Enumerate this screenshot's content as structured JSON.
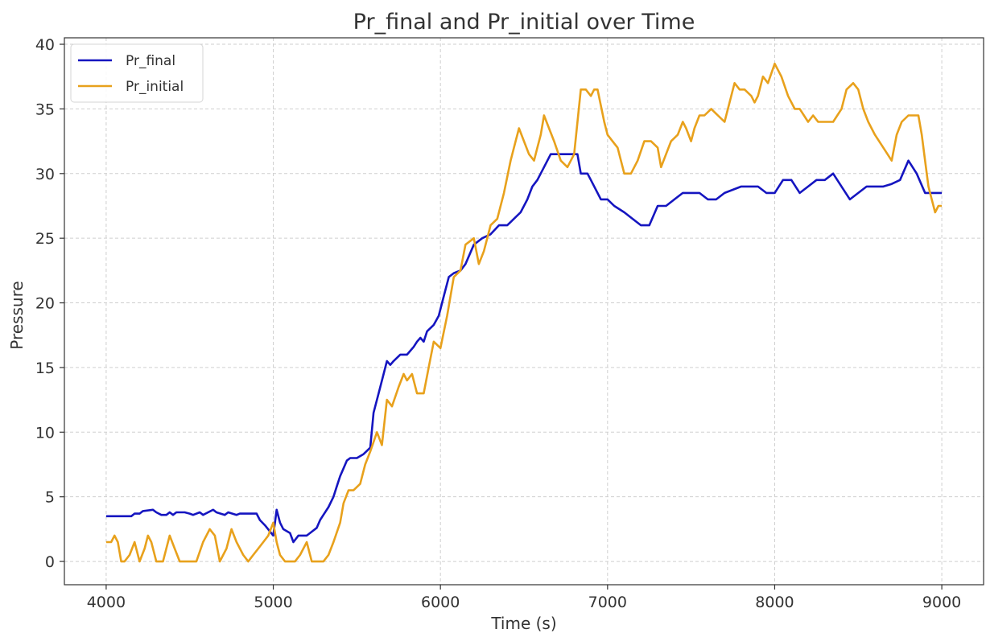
{
  "chart_data": {
    "type": "line",
    "title": "Pr_final and Pr_initial over Time",
    "xlabel": "Time (s)",
    "ylabel": "Pressure",
    "xlim": [
      3750,
      9250
    ],
    "ylim": [
      -1.8,
      40.5
    ],
    "xticks": [
      4000,
      5000,
      6000,
      7000,
      8000,
      9000
    ],
    "yticks": [
      0,
      5,
      10,
      15,
      20,
      25,
      30,
      35,
      40
    ],
    "grid": true,
    "legend_position": "top-left",
    "series": [
      {
        "name": "Pr_final",
        "color": "#1515c0",
        "x": [
          4000,
          4150,
          4170,
          4200,
          4220,
          4280,
          4300,
          4330,
          4360,
          4380,
          4400,
          4420,
          4470,
          4500,
          4520,
          4560,
          4580,
          4640,
          4660,
          4710,
          4730,
          4780,
          4800,
          4900,
          4920,
          4950,
          5000,
          5020,
          5040,
          5060,
          5100,
          5120,
          5150,
          5170,
          5200,
          5230,
          5260,
          5280,
          5300,
          5330,
          5360,
          5380,
          5400,
          5420,
          5440,
          5460,
          5500,
          5540,
          5580,
          5600,
          5630,
          5660,
          5680,
          5700,
          5720,
          5760,
          5800,
          5840,
          5860,
          5880,
          5900,
          5920,
          5960,
          5990,
          6020,
          6050,
          6080,
          6120,
          6150,
          6200,
          6250,
          6300,
          6350,
          6400,
          6440,
          6480,
          6520,
          6550,
          6580,
          6620,
          6660,
          6720,
          6760,
          6820,
          6840,
          6880,
          6900,
          6960,
          7000,
          7040,
          7100,
          7150,
          7200,
          7250,
          7300,
          7350,
          7400,
          7450,
          7500,
          7550,
          7600,
          7650,
          7700,
          7800,
          7850,
          7900,
          7950,
          8000,
          8050,
          8100,
          8150,
          8200,
          8250,
          8300,
          8350,
          8400,
          8450,
          8500,
          8550,
          8600,
          8650,
          8700,
          8750,
          8800,
          8850,
          8900,
          9000
        ],
        "values": [
          3.5,
          3.5,
          3.7,
          3.7,
          3.9,
          4.0,
          3.8,
          3.6,
          3.6,
          3.8,
          3.6,
          3.8,
          3.8,
          3.7,
          3.6,
          3.8,
          3.6,
          4.0,
          3.8,
          3.6,
          3.8,
          3.6,
          3.7,
          3.7,
          3.2,
          2.8,
          2.0,
          4.0,
          3.0,
          2.5,
          2.2,
          1.5,
          2.0,
          2.0,
          2.0,
          2.3,
          2.6,
          3.2,
          3.6,
          4.2,
          5.0,
          5.8,
          6.6,
          7.2,
          7.8,
          8.0,
          8.0,
          8.3,
          8.8,
          11.5,
          13.0,
          14.5,
          15.5,
          15.2,
          15.5,
          16.0,
          16.0,
          16.6,
          17.0,
          17.3,
          17.0,
          17.8,
          18.3,
          19.0,
          20.5,
          22.0,
          22.3,
          22.5,
          23.0,
          24.5,
          25.0,
          25.3,
          26.0,
          26.0,
          26.5,
          27.0,
          28.0,
          29.0,
          29.5,
          30.5,
          31.5,
          31.5,
          31.5,
          31.5,
          30.0,
          30.0,
          29.5,
          28.0,
          28.0,
          27.5,
          27.0,
          26.5,
          26.0,
          26.0,
          27.5,
          27.5,
          28.0,
          28.5,
          28.5,
          28.5,
          28.0,
          28.0,
          28.5,
          29.0,
          29.0,
          29.0,
          28.5,
          28.5,
          29.5,
          29.5,
          28.5,
          29.0,
          29.5,
          29.5,
          30.0,
          29.0,
          28.0,
          28.5,
          29.0,
          29.0,
          29.0,
          29.2,
          29.5,
          31.0,
          30.0,
          28.5,
          28.5
        ]
      },
      {
        "name": "Pr_initial",
        "color": "#e8a11c",
        "x": [
          4000,
          4030,
          4050,
          4070,
          4090,
          4110,
          4140,
          4170,
          4200,
          4230,
          4250,
          4270,
          4300,
          4340,
          4380,
          4410,
          4440,
          4470,
          4500,
          4540,
          4580,
          4620,
          4650,
          4680,
          4720,
          4750,
          4780,
          4820,
          4850,
          4880,
          4910,
          4940,
          4970,
          5000,
          5020,
          5040,
          5070,
          5100,
          5130,
          5160,
          5200,
          5230,
          5260,
          5300,
          5330,
          5360,
          5400,
          5420,
          5450,
          5480,
          5520,
          5550,
          5580,
          5620,
          5650,
          5680,
          5710,
          5750,
          5780,
          5800,
          5830,
          5860,
          5900,
          5930,
          5960,
          6000,
          6040,
          6080,
          6120,
          6150,
          6200,
          6230,
          6260,
          6300,
          6340,
          6380,
          6420,
          6450,
          6470,
          6500,
          6530,
          6560,
          6580,
          6600,
          6620,
          6650,
          6680,
          6720,
          6760,
          6800,
          6840,
          6870,
          6900,
          6920,
          6940,
          6980,
          7000,
          7030,
          7060,
          7100,
          7140,
          7180,
          7220,
          7260,
          7300,
          7320,
          7350,
          7380,
          7420,
          7450,
          7470,
          7500,
          7520,
          7550,
          7580,
          7620,
          7660,
          7700,
          7730,
          7760,
          7790,
          7820,
          7860,
          7880,
          7900,
          7930,
          7960,
          8000,
          8040,
          8080,
          8120,
          8150,
          8200,
          8230,
          8260,
          8300,
          8350,
          8400,
          8430,
          8470,
          8500,
          8530,
          8560,
          8600,
          8650,
          8700,
          8730,
          8760,
          8800,
          8830,
          8860,
          8880,
          8900,
          8920,
          8940,
          8960,
          8980,
          9000
        ],
        "values": [
          1.5,
          1.5,
          2.0,
          1.5,
          0.0,
          0.0,
          0.5,
          1.5,
          0.0,
          1.0,
          2.0,
          1.5,
          0.0,
          0.0,
          2.0,
          1.0,
          0.0,
          0.0,
          0.0,
          0.0,
          1.5,
          2.5,
          2.0,
          0.0,
          1.0,
          2.5,
          1.5,
          0.5,
          0.0,
          0.5,
          1.0,
          1.5,
          2.0,
          3.0,
          1.5,
          0.5,
          0.0,
          0.0,
          0.0,
          0.5,
          1.5,
          0.0,
          0.0,
          0.0,
          0.5,
          1.5,
          3.0,
          4.5,
          5.5,
          5.5,
          6.0,
          7.5,
          8.5,
          10.0,
          9.0,
          12.5,
          12.0,
          13.5,
          14.5,
          14.0,
          14.5,
          13.0,
          13.0,
          15.0,
          17.0,
          16.5,
          19.0,
          22.0,
          22.5,
          24.5,
          25.0,
          23.0,
          24.0,
          26.0,
          26.5,
          28.5,
          31.0,
          32.5,
          33.5,
          32.5,
          31.5,
          31.0,
          32.0,
          33.0,
          34.5,
          33.5,
          32.5,
          31.0,
          30.5,
          31.5,
          36.5,
          36.5,
          36.0,
          36.5,
          36.5,
          34.0,
          33.0,
          32.5,
          32.0,
          30.0,
          30.0,
          31.0,
          32.5,
          32.5,
          32.0,
          30.5,
          31.5,
          32.5,
          33.0,
          34.0,
          33.5,
          32.5,
          33.5,
          34.5,
          34.5,
          35.0,
          34.5,
          34.0,
          35.5,
          37.0,
          36.5,
          36.5,
          36.0,
          35.5,
          36.0,
          37.5,
          37.0,
          38.5,
          37.5,
          36.0,
          35.0,
          35.0,
          34.0,
          34.5,
          34.0,
          34.0,
          34.0,
          35.0,
          36.5,
          37.0,
          36.5,
          35.0,
          34.0,
          33.0,
          32.0,
          31.0,
          33.0,
          34.0,
          34.5,
          34.5,
          34.5,
          33.0,
          31.0,
          29.0,
          28.0,
          27.0,
          27.5,
          27.5
        ]
      }
    ]
  }
}
